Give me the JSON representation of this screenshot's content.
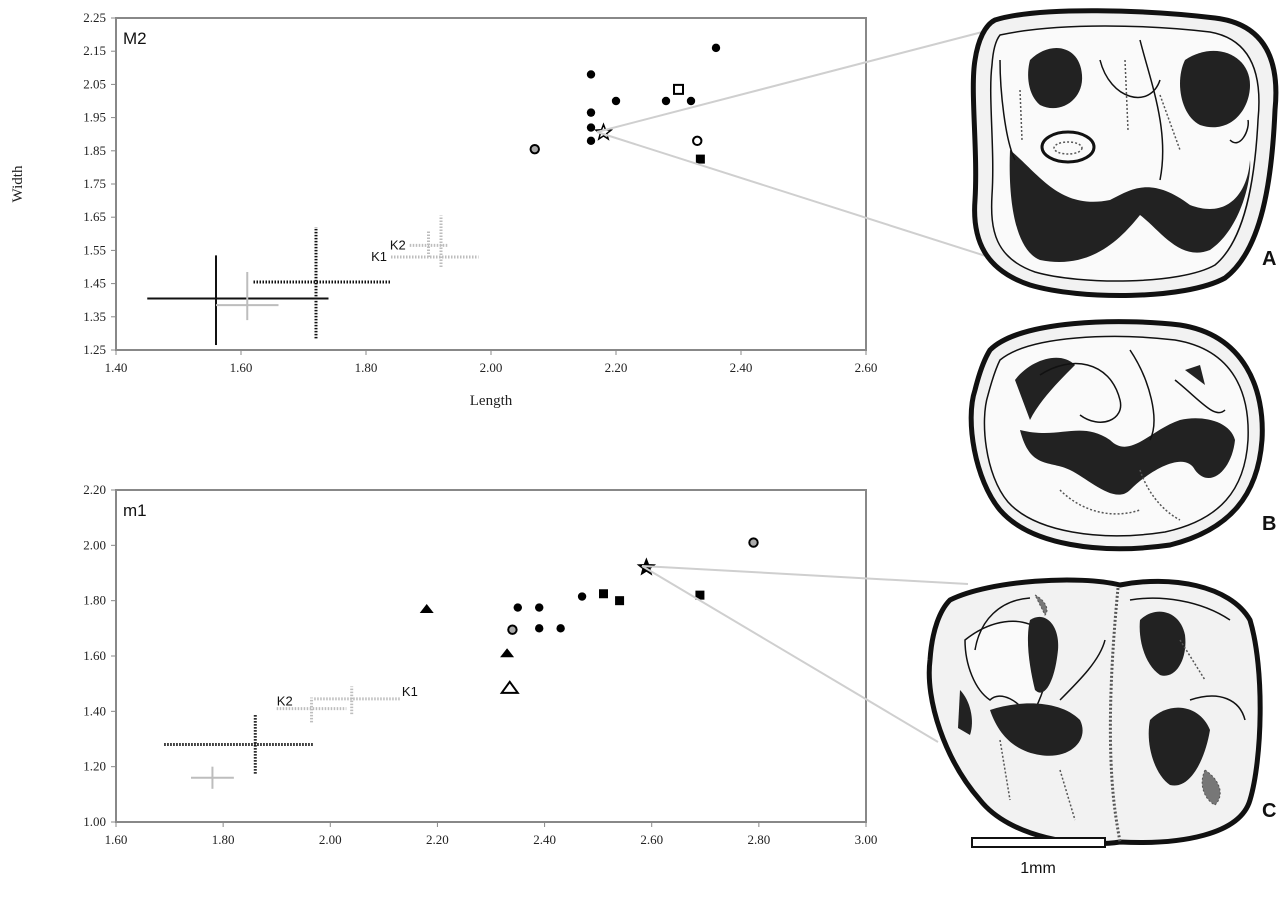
{
  "chart_data": [
    {
      "type": "scatter",
      "title": "M2",
      "xlabel": "Length",
      "ylabel": "Width",
      "xlim": [
        1.4,
        2.6
      ],
      "ylim": [
        1.25,
        2.25
      ],
      "x_ticks": [
        "1.40",
        "1.60",
        "1.80",
        "2.00",
        "2.20",
        "2.40",
        "2.60"
      ],
      "y_ticks": [
        "1.25",
        "1.35",
        "1.45",
        "1.55",
        "1.65",
        "1.75",
        "1.85",
        "1.95",
        "2.05",
        "2.15",
        "2.25"
      ],
      "points": [
        {
          "x": 2.16,
          "y": 2.08,
          "marker": "circle-filled"
        },
        {
          "x": 2.16,
          "y": 1.965,
          "marker": "circle-filled"
        },
        {
          "x": 2.16,
          "y": 1.92,
          "marker": "circle-filled"
        },
        {
          "x": 2.16,
          "y": 1.88,
          "marker": "circle-filled"
        },
        {
          "x": 2.2,
          "y": 2.0,
          "marker": "circle-filled"
        },
        {
          "x": 2.28,
          "y": 2.0,
          "marker": "circle-filled"
        },
        {
          "x": 2.32,
          "y": 2.0,
          "marker": "circle-filled"
        },
        {
          "x": 2.36,
          "y": 2.16,
          "marker": "circle-filled"
        },
        {
          "x": 2.3,
          "y": 2.035,
          "marker": "square-open"
        },
        {
          "x": 2.33,
          "y": 1.88,
          "marker": "circle-open"
        },
        {
          "x": 2.335,
          "y": 1.825,
          "marker": "square-filled"
        },
        {
          "x": 2.07,
          "y": 1.855,
          "marker": "circle-grey"
        },
        {
          "x": 2.18,
          "y": 1.905,
          "marker": "star-open"
        }
      ],
      "range_crosses": [
        {
          "label": "",
          "style": "black-solid",
          "x": [
            1.45,
            1.56,
            1.74
          ],
          "y": [
            1.265,
            1.405,
            1.535
          ]
        },
        {
          "label": "",
          "style": "grey-solid",
          "x": [
            1.56,
            1.61,
            1.66
          ],
          "y": [
            1.34,
            1.385,
            1.485
          ]
        },
        {
          "label": "",
          "style": "black-dotted",
          "x": [
            1.62,
            1.72,
            1.84
          ],
          "y": [
            1.285,
            1.455,
            1.62
          ]
        },
        {
          "label": "K1",
          "style": "grey-dotted",
          "x": [
            1.84,
            1.92,
            1.98
          ],
          "y": [
            1.5,
            1.53,
            1.655
          ]
        },
        {
          "label": "K2",
          "style": "grey-dotted",
          "x": [
            1.87,
            1.9,
            1.93
          ],
          "y": [
            1.53,
            1.565,
            1.61
          ]
        }
      ]
    },
    {
      "type": "scatter",
      "title": "m1",
      "xlabel": "",
      "ylabel": "",
      "xlim": [
        1.6,
        3.0
      ],
      "ylim": [
        1.0,
        2.2
      ],
      "x_ticks": [
        "1.60",
        "1.80",
        "2.00",
        "2.20",
        "2.40",
        "2.60",
        "2.80",
        "3.00"
      ],
      "y_ticks": [
        "1.00",
        "1.20",
        "1.40",
        "1.60",
        "1.80",
        "2.00",
        "2.20"
      ],
      "points": [
        {
          "x": 2.18,
          "y": 1.77,
          "marker": "triangle-filled"
        },
        {
          "x": 2.33,
          "y": 1.61,
          "marker": "triangle-filled"
        },
        {
          "x": 2.335,
          "y": 1.485,
          "marker": "triangle-open"
        },
        {
          "x": 2.35,
          "y": 1.775,
          "marker": "circle-filled"
        },
        {
          "x": 2.39,
          "y": 1.775,
          "marker": "circle-filled"
        },
        {
          "x": 2.39,
          "y": 1.7,
          "marker": "circle-filled"
        },
        {
          "x": 2.43,
          "y": 1.7,
          "marker": "circle-filled"
        },
        {
          "x": 2.47,
          "y": 1.815,
          "marker": "circle-filled"
        },
        {
          "x": 2.34,
          "y": 1.695,
          "marker": "circle-grey"
        },
        {
          "x": 2.51,
          "y": 1.825,
          "marker": "square-filled"
        },
        {
          "x": 2.54,
          "y": 1.8,
          "marker": "square-filled"
        },
        {
          "x": 2.69,
          "y": 1.82,
          "marker": "square-filled"
        },
        {
          "x": 2.79,
          "y": 2.01,
          "marker": "circle-grey"
        },
        {
          "x": 2.59,
          "y": 1.92,
          "marker": "star-filled"
        }
      ],
      "range_crosses": [
        {
          "label": "",
          "style": "black-dotted",
          "x": [
            1.69,
            1.86,
            1.97
          ],
          "y": [
            1.175,
            1.28,
            1.39
          ]
        },
        {
          "label": "",
          "style": "grey-solid",
          "x": [
            1.74,
            1.78,
            1.82
          ],
          "y": [
            1.12,
            1.16,
            1.2
          ]
        },
        {
          "label": "K2",
          "style": "grey-dotted",
          "x": [
            1.9,
            1.965,
            2.03
          ],
          "y": [
            1.36,
            1.41,
            1.45
          ]
        },
        {
          "label": "K1",
          "style": "grey-dotted",
          "x": [
            1.97,
            2.04,
            2.13
          ],
          "y": [
            1.39,
            1.445,
            1.49
          ]
        }
      ]
    }
  ],
  "panels": [
    "A",
    "B",
    "C"
  ],
  "scale_bar_label": "1mm"
}
